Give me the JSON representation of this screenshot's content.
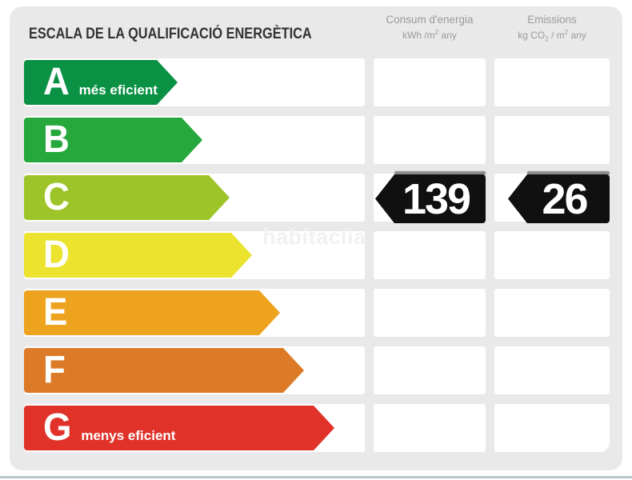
{
  "title": "ESCALA DE LA QUALIFICACIÓ ENERGÈTICA",
  "columns": [
    {
      "name": "consumption",
      "title": "Consum d'energia",
      "unit": {
        "p1": "kWh /m",
        "sup": "2",
        "p2": " any"
      }
    },
    {
      "name": "emissions",
      "title": "Emissions",
      "unit": {
        "p1": "kg CO",
        "sub": "2",
        "p2": " / m",
        "sup": "2",
        "p3": " any"
      }
    }
  ],
  "scale": {
    "current_grade": "C",
    "rows": [
      {
        "grade": "A",
        "label": "més eficient",
        "color": "#0a9144",
        "arrow_width": 192
      },
      {
        "grade": "B",
        "label": "",
        "color": "#27a83d",
        "arrow_width": 223
      },
      {
        "grade": "C",
        "label": "",
        "color": "#9dc529",
        "arrow_width": 257
      },
      {
        "grade": "D",
        "label": "",
        "color": "#ebe32d",
        "arrow_width": 285
      },
      {
        "grade": "E",
        "label": "",
        "color": "#eea31e",
        "arrow_width": 320
      },
      {
        "grade": "F",
        "label": "",
        "color": "#dc7a28",
        "arrow_width": 350
      },
      {
        "grade": "G",
        "label": "menys eficient",
        "color": "#e1322a",
        "arrow_width": 388
      }
    ]
  },
  "values": {
    "consumption": "139",
    "emissions": "26"
  },
  "watermark": "habitaclia",
  "colors": {
    "panel_bg": "#e9e9e9",
    "badge_bg": "#101010",
    "title_text": "#333333",
    "header_text": "#9a9a9a",
    "bottom_line": "#b7c3cb"
  },
  "chart_data": {
    "type": "table",
    "title": "ESCALA DE LA QUALIFICACIÓ ENERGÈTICA",
    "categories": [
      "A",
      "B",
      "C",
      "D",
      "E",
      "F",
      "G"
    ],
    "category_labels": {
      "A": "més eficient",
      "G": "menys eficient"
    },
    "highlighted_grade": "C",
    "series": [
      {
        "name": "Consum d'energia (kWh/m² any)",
        "grade": "C",
        "value": 139
      },
      {
        "name": "Emissions (kg CO₂/m² any)",
        "grade": "C",
        "value": 26
      }
    ],
    "bar_colors": [
      "#0a9144",
      "#27a83d",
      "#9dc529",
      "#ebe32d",
      "#eea31e",
      "#dc7a28",
      "#e1322a"
    ],
    "bar_relative_lengths": [
      192,
      223,
      257,
      285,
      320,
      350,
      388
    ],
    "legend_position": "none",
    "grid": false
  }
}
